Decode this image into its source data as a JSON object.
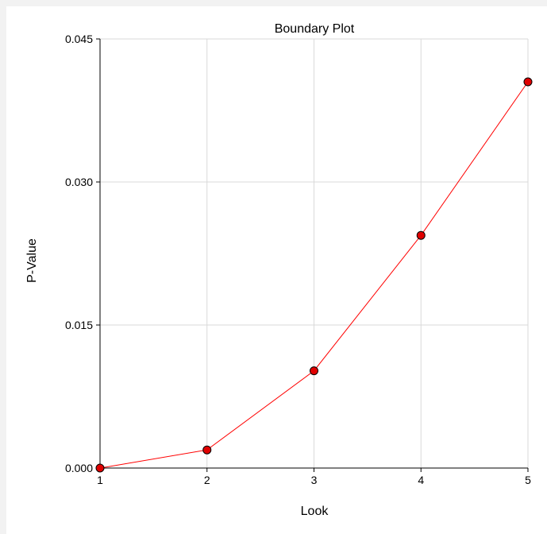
{
  "chart_data": {
    "type": "line",
    "title": "Boundary Plot",
    "xlabel": "Look",
    "ylabel": "P-Value",
    "x": [
      1,
      2,
      3,
      4,
      5
    ],
    "series": [
      {
        "values": [
          0.0,
          0.0019,
          0.0102,
          0.0244,
          0.0405
        ]
      }
    ],
    "xlim": [
      1,
      5
    ],
    "ylim": [
      0,
      0.045
    ],
    "xticks": [
      "1",
      "2",
      "3",
      "4",
      "5"
    ],
    "yticks": [
      "0.000",
      "0.015",
      "0.030",
      "0.045"
    ],
    "grid": true,
    "legend": "none",
    "colors": {
      "line": "#ff0000",
      "marker_fill": "#e00000",
      "marker_stroke": "#000000",
      "grid": "#d9d9d9",
      "axis": "#000000",
      "background": "#ffffff",
      "frame": "#f2f2f2"
    }
  }
}
